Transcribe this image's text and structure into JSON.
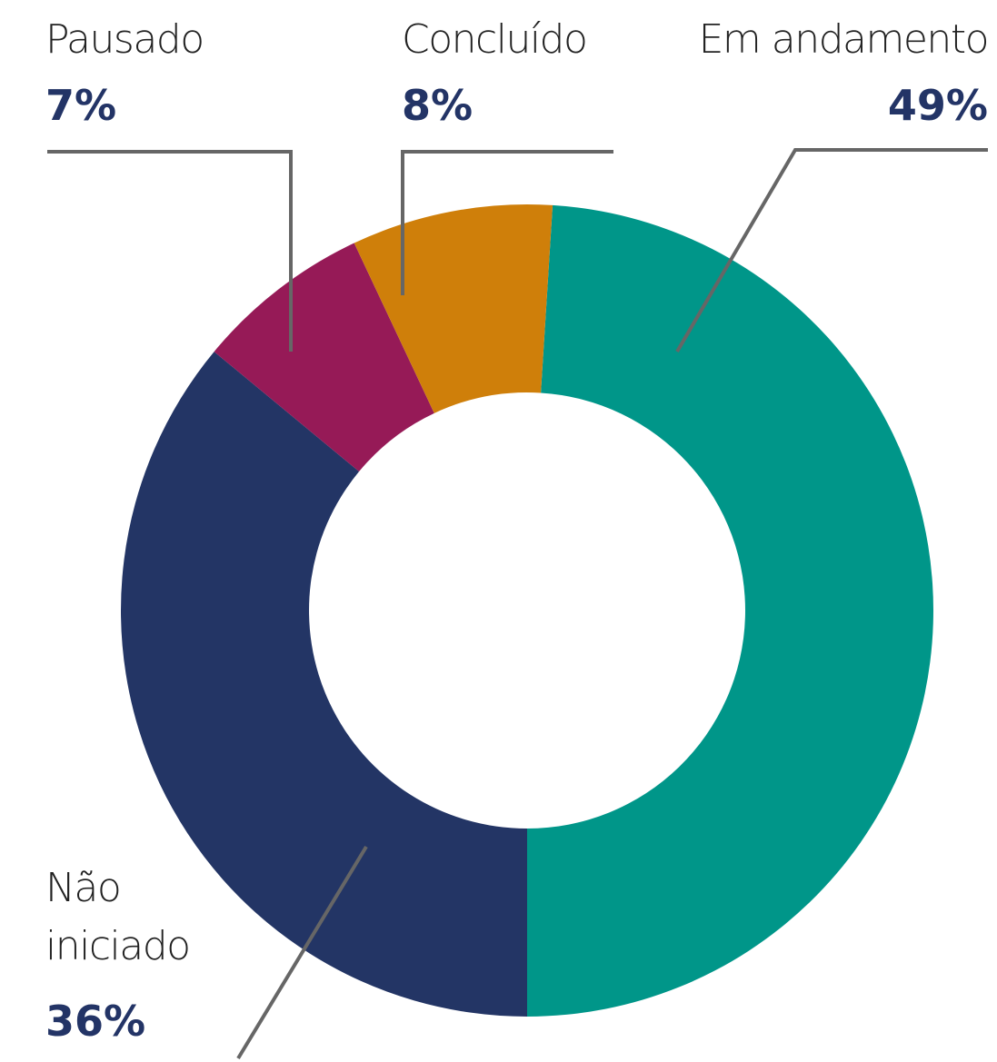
{
  "chart_data": {
    "type": "donut",
    "categories": [
      "Em andamento",
      "Não iniciado",
      "Pausado",
      "Concluído"
    ],
    "values": [
      49,
      36,
      7,
      8
    ],
    "value_labels": [
      "49%",
      "36%",
      "7%",
      "8%"
    ],
    "colors": [
      "#009689",
      "#233565",
      "#961a57",
      "#cf7f0a"
    ]
  }
}
